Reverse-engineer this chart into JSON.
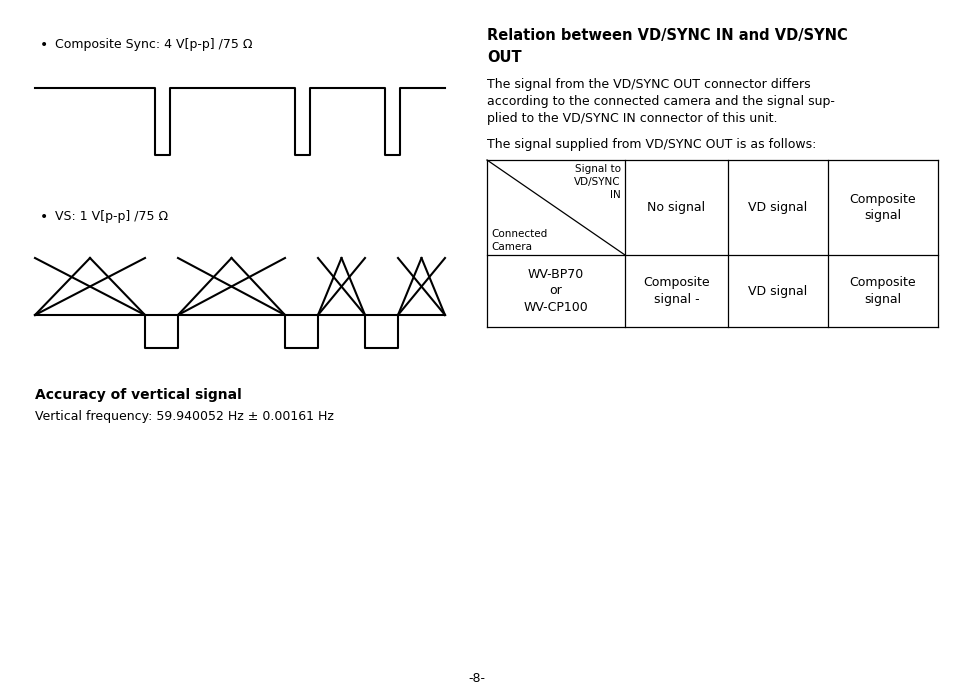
{
  "background_color": "#ffffff",
  "page_number": "-8-",
  "left_section": {
    "bullet1_text": "Composite Sync: 4 V[p-p] /75 Ω",
    "bullet2_text": "VS: 1 V[p-p] /75 Ω",
    "accuracy_title": "Accuracy of vertical signal",
    "accuracy_body": "Vertical frequency: 59.940052 Hz ± 0.00161 Hz"
  },
  "right_section": {
    "title_line1": "Relation between VD/SYNC IN and VD/SYNC",
    "title_line2": "OUT",
    "body_line1": "The signal from the VD/SYNC OUT connector differs",
    "body_line2": "according to the connected camera and the signal sup-",
    "body_line3": "plied to the VD/SYNC IN connector of this unit.",
    "body_line4": "The signal supplied from VD/SYNC OUT is as follows:"
  }
}
